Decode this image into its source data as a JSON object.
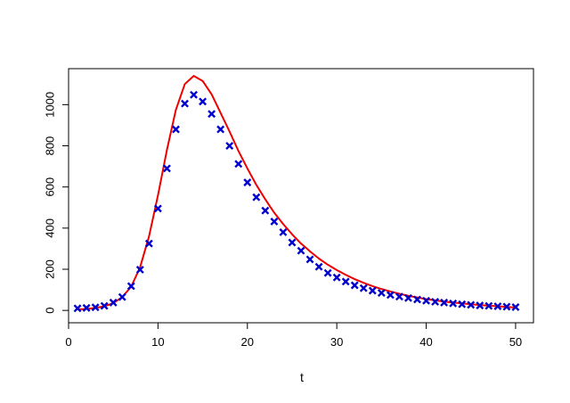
{
  "chart_data": {
    "type": "scatter",
    "title": "",
    "xlabel": "t",
    "ylabel": "",
    "xlim": [
      0,
      52
    ],
    "ylim": [
      -60,
      1175
    ],
    "x_ticks": [
      0,
      10,
      20,
      30,
      40,
      50
    ],
    "y_ticks": [
      0,
      200,
      400,
      600,
      800,
      1000
    ],
    "x_tick_labels": [
      "0",
      "10",
      "20",
      "30",
      "40",
      "50"
    ],
    "y_tick_labels": [
      "0",
      "200",
      "400",
      "600",
      "800",
      "1000"
    ],
    "grid": false,
    "legend": "none",
    "points": {
      "marker": "x",
      "color": "#0000CC",
      "x": [
        1,
        2,
        3,
        4,
        5,
        6,
        7,
        8,
        9,
        10,
        11,
        12,
        13,
        14,
        15,
        16,
        17,
        18,
        19,
        20,
        21,
        22,
        23,
        24,
        25,
        26,
        27,
        28,
        29,
        30,
        31,
        32,
        33,
        34,
        35,
        36,
        37,
        38,
        39,
        40,
        41,
        42,
        43,
        44,
        45,
        46,
        47,
        48,
        49,
        50
      ],
      "y": [
        10,
        12,
        15,
        22,
        38,
        65,
        118,
        198,
        325,
        495,
        690,
        880,
        1005,
        1048,
        1015,
        955,
        880,
        800,
        712,
        622,
        550,
        485,
        432,
        380,
        330,
        290,
        248,
        212,
        182,
        160,
        140,
        122,
        108,
        96,
        85,
        75,
        67,
        60,
        53,
        47,
        42,
        38,
        34,
        30,
        27,
        24,
        22,
        20,
        18,
        16
      ]
    },
    "line": {
      "color": "#EE0000",
      "x": [
        1,
        2,
        3,
        4,
        5,
        6,
        7,
        8,
        9,
        10,
        11,
        12,
        13,
        14,
        15,
        16,
        17,
        18,
        19,
        20,
        21,
        22,
        23,
        24,
        25,
        26,
        27,
        28,
        29,
        30,
        31,
        32,
        33,
        34,
        35,
        36,
        37,
        38,
        39,
        40,
        41,
        42,
        43,
        44,
        45,
        46,
        47,
        48,
        49,
        50
      ],
      "y": [
        5,
        7,
        12,
        20,
        35,
        65,
        115,
        210,
        360,
        560,
        780,
        975,
        1100,
        1140,
        1115,
        1050,
        960,
        870,
        775,
        690,
        610,
        540,
        475,
        420,
        370,
        325,
        287,
        252,
        222,
        196,
        173,
        152,
        134,
        118,
        104,
        92,
        81,
        71,
        63,
        55,
        49,
        43,
        38,
        34,
        30,
        26,
        23,
        20,
        17,
        14
      ]
    }
  }
}
